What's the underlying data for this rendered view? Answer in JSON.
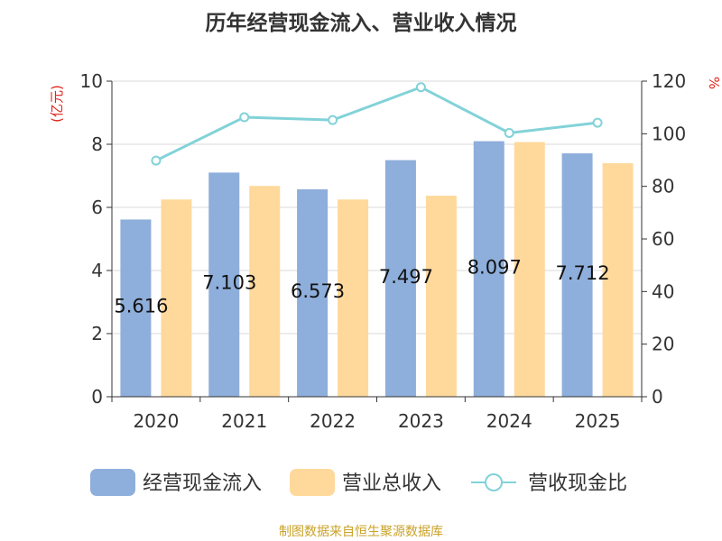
{
  "chart_data": {
    "type": "bar",
    "title": "历年经营现金流入、营业收入情况",
    "categories": [
      "2020",
      "2021",
      "2022",
      "2023",
      "2024",
      "2025"
    ],
    "ylabel_left": "(亿元)",
    "ylabel_right": "%",
    "ylim_left": [
      0,
      10
    ],
    "ylim_right": [
      0,
      120
    ],
    "yticks_left": [
      0,
      2,
      4,
      6,
      8,
      10
    ],
    "yticks_right": [
      0,
      20,
      40,
      60,
      80,
      100,
      120
    ],
    "grid": true,
    "legend_position": "bottom",
    "series": [
      {
        "name": "经营现金流入",
        "type": "bar",
        "axis": "left",
        "color": "#8eaedb",
        "values": [
          5.616,
          7.103,
          6.573,
          7.497,
          8.097,
          7.712
        ],
        "labels": [
          "5.616",
          "7.103",
          "6.573",
          "7.497",
          "8.097",
          "7.712"
        ]
      },
      {
        "name": "营业总收入",
        "type": "bar",
        "axis": "left",
        "color": "#ffd99b",
        "values": [
          6.25,
          6.68,
          6.25,
          6.37,
          8.07,
          7.4
        ]
      },
      {
        "name": "营收现金比",
        "type": "line",
        "axis": "right",
        "color": "#82d2d8",
        "values": [
          89.8,
          106.3,
          105.2,
          117.7,
          100.3,
          104.2
        ]
      }
    ],
    "source": "制图数据来自恒生聚源数据库"
  }
}
